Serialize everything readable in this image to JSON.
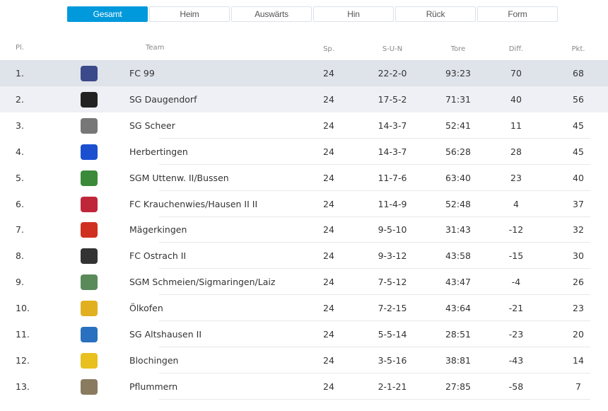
{
  "tabs": [
    "Gesamt",
    "Heim",
    "Auswärts",
    "Hin",
    "Rück",
    "Form"
  ],
  "active_tab": 0,
  "headers": {
    "pl": "Pl.",
    "team": "Team",
    "sp": "Sp.",
    "sun": "S-U-N",
    "tore": "Tore",
    "diff": "Diff.",
    "pkt": "Pkt."
  },
  "rows": [
    {
      "pl": "1.",
      "team": "FC 99",
      "sp": "24",
      "sun": "22-2-0",
      "tore": "93:23",
      "diff": "70",
      "pkt": "68",
      "logo": "#3a4a8a"
    },
    {
      "pl": "2.",
      "team": "SG Daugendorf",
      "sp": "24",
      "sun": "17-5-2",
      "tore": "71:31",
      "diff": "40",
      "pkt": "56",
      "logo": "#222222"
    },
    {
      "pl": "3.",
      "team": "SG Scheer",
      "sp": "24",
      "sun": "14-3-7",
      "tore": "52:41",
      "diff": "11",
      "pkt": "45",
      "logo": "#777777"
    },
    {
      "pl": "4.",
      "team": "Herbertingen",
      "sp": "24",
      "sun": "14-3-7",
      "tore": "56:28",
      "diff": "28",
      "pkt": "45",
      "logo": "#1a4fd0"
    },
    {
      "pl": "5.",
      "team": "SGM Uttenw. II/Bussen",
      "sp": "24",
      "sun": "11-7-6",
      "tore": "63:40",
      "diff": "23",
      "pkt": "40",
      "logo": "#3a8a3a"
    },
    {
      "pl": "6.",
      "team": "FC Krauchenwies/Hausen II II",
      "sp": "24",
      "sun": "11-4-9",
      "tore": "52:48",
      "diff": "4",
      "pkt": "37",
      "logo": "#c0263a"
    },
    {
      "pl": "7.",
      "team": "Mägerkingen",
      "sp": "24",
      "sun": "9-5-10",
      "tore": "31:43",
      "diff": "-12",
      "pkt": "32",
      "logo": "#d03020"
    },
    {
      "pl": "8.",
      "team": "FC Ostrach II",
      "sp": "24",
      "sun": "9-3-12",
      "tore": "43:58",
      "diff": "-15",
      "pkt": "30",
      "logo": "#333333"
    },
    {
      "pl": "9.",
      "team": "SGM Schmeien/Sigmaringen/Laiz",
      "sp": "24",
      "sun": "7-5-12",
      "tore": "43:47",
      "diff": "-4",
      "pkt": "26",
      "logo": "#5a8a5a"
    },
    {
      "pl": "10.",
      "team": "Ölkofen",
      "sp": "24",
      "sun": "7-2-15",
      "tore": "43:64",
      "diff": "-21",
      "pkt": "23",
      "logo": "#e0b020"
    },
    {
      "pl": "11.",
      "team": "SG Altshausen II",
      "sp": "24",
      "sun": "5-5-14",
      "tore": "28:51",
      "diff": "-23",
      "pkt": "20",
      "logo": "#2a70c0"
    },
    {
      "pl": "12.",
      "team": "Blochingen",
      "sp": "24",
      "sun": "3-5-16",
      "tore": "38:81",
      "diff": "-43",
      "pkt": "14",
      "logo": "#e8c020"
    },
    {
      "pl": "13.",
      "team": "Pflummern",
      "sp": "24",
      "sun": "2-1-21",
      "tore": "27:85",
      "diff": "-58",
      "pkt": "7",
      "logo": "#8a7a60"
    }
  ],
  "colors": {
    "accent": "#0099dc",
    "row1": "#dfe3ea",
    "row2": "#eef0f5"
  }
}
